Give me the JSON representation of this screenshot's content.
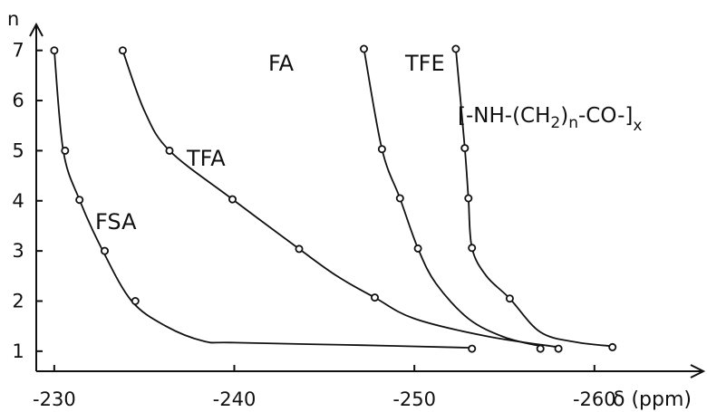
{
  "chart_data": {
    "type": "scatter",
    "title": "",
    "xlabel": "δ (ppm)",
    "ylabel": "n",
    "formula": {
      "main": "[-NH-(CH",
      "sub1": "2",
      "mid": ")",
      "sub2": "n",
      "tail": "-CO-]",
      "sub3": "x"
    },
    "xlim": [
      -229,
      -266
    ],
    "ylim": [
      0.6,
      7.5
    ],
    "x_ticks": [
      -230,
      -240,
      -250,
      -260
    ],
    "x_tick_labels": [
      "-230",
      "-240",
      "-250",
      "-260"
    ],
    "y_ticks": [
      1,
      2,
      3,
      4,
      5,
      6,
      7
    ],
    "y_tick_labels": [
      "1",
      "2",
      "3",
      "4",
      "5",
      "6",
      "7"
    ],
    "grid": false,
    "legend": "none",
    "series": [
      {
        "name": "FSA",
        "points": [
          [
            -253.2,
            1.05
          ],
          [
            -234.5,
            2.0
          ],
          [
            -232.8,
            3.0
          ],
          [
            -231.4,
            4.02
          ],
          [
            -230.6,
            5.0
          ],
          [
            -230.0,
            7.0
          ]
        ],
        "curve": [
          [
            -253.0,
            1.07
          ],
          [
            -247.0,
            1.12
          ],
          [
            -240.0,
            1.17
          ],
          [
            -238.3,
            1.2
          ],
          [
            -236.2,
            1.5
          ],
          [
            -234.3,
            2.0
          ],
          [
            -232.7,
            3.0
          ],
          [
            -231.4,
            4.02
          ],
          [
            -230.5,
            5.0
          ],
          [
            -230.0,
            7.0
          ]
        ]
      },
      {
        "name": "TFA",
        "points": [
          [
            -258.0,
            1.05
          ],
          [
            -247.8,
            2.07
          ],
          [
            -243.6,
            3.04
          ],
          [
            -239.9,
            4.03
          ],
          [
            -236.4,
            5.0
          ],
          [
            -233.8,
            7.0
          ]
        ],
        "curve": [
          [
            -258.0,
            1.08
          ],
          [
            -254.0,
            1.3
          ],
          [
            -250.0,
            1.65
          ],
          [
            -247.8,
            2.07
          ],
          [
            -245.7,
            2.5
          ],
          [
            -243.6,
            3.04
          ],
          [
            -239.9,
            4.03
          ],
          [
            -236.4,
            5.0
          ],
          [
            -235.0,
            5.8
          ],
          [
            -233.8,
            7.0
          ]
        ]
      },
      {
        "name": "FA",
        "points": [
          [
            -257.0,
            1.05
          ],
          [
            -250.2,
            3.05
          ],
          [
            -249.2,
            4.05
          ],
          [
            -248.2,
            5.03
          ],
          [
            -247.2,
            7.03
          ]
        ],
        "curve": [
          [
            -257.0,
            1.1
          ],
          [
            -255.0,
            1.28
          ],
          [
            -253.0,
            1.65
          ],
          [
            -251.2,
            2.35
          ],
          [
            -250.2,
            3.05
          ],
          [
            -249.2,
            4.05
          ],
          [
            -248.2,
            5.03
          ],
          [
            -247.2,
            7.03
          ]
        ]
      },
      {
        "name": "TFE",
        "points": [
          [
            -261.0,
            1.08
          ],
          [
            -255.3,
            2.05
          ],
          [
            -253.2,
            3.06
          ],
          [
            -253.0,
            4.05
          ],
          [
            -252.8,
            5.05
          ],
          [
            -252.3,
            7.03
          ]
        ],
        "curve": [
          [
            -261.0,
            1.1
          ],
          [
            -259.0,
            1.18
          ],
          [
            -257.0,
            1.38
          ],
          [
            -255.3,
            2.05
          ],
          [
            -254.0,
            2.5
          ],
          [
            -253.2,
            3.06
          ],
          [
            -253.0,
            4.05
          ],
          [
            -252.8,
            5.05
          ],
          [
            -252.3,
            7.03
          ]
        ]
      }
    ]
  }
}
